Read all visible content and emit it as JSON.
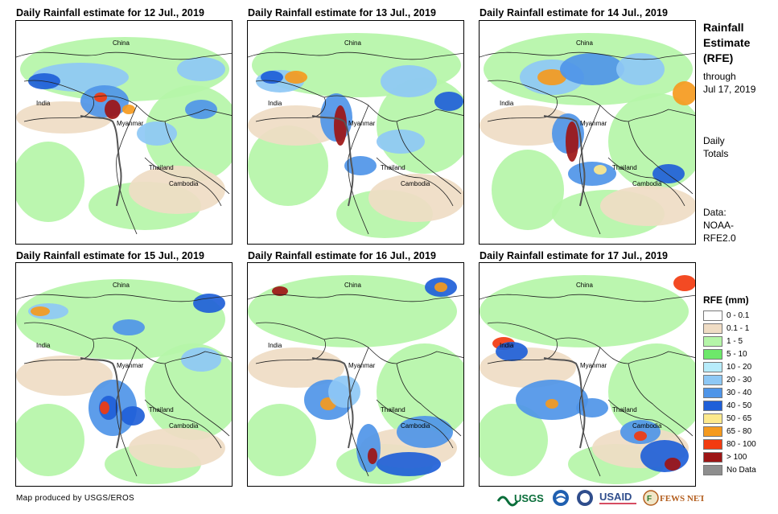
{
  "panels": [
    {
      "title": "Daily Rainfall estimate for 12 Jul., 2019"
    },
    {
      "title": "Daily Rainfall estimate for 13 Jul., 2019"
    },
    {
      "title": "Daily Rainfall estimate for 14 Jul., 2019"
    },
    {
      "title": "Daily Rainfall estimate for 15 Jul., 2019"
    },
    {
      "title": "Daily Rainfall estimate for 16 Jul., 2019"
    },
    {
      "title": "Daily Rainfall estimate for 17 Jul., 2019"
    }
  ],
  "map_labels": {
    "china": "China",
    "india": "India",
    "myanmar": "Myanmar",
    "thailand": "Thailand",
    "cambodia": "Cambodia"
  },
  "side": {
    "title_line1": "Rainfall",
    "title_line2": "Estimate",
    "title_line3": "(RFE)",
    "through_label": "through",
    "through_date": "Jul 17, 2019",
    "totals_line1": "Daily",
    "totals_line2": "Totals",
    "data_line1": "Data:",
    "data_line2": "NOAA-",
    "data_line3": "RFE2.0"
  },
  "legend": {
    "title": "RFE (mm)",
    "items": [
      {
        "label": "0 - 0.1",
        "color": "#ffffff"
      },
      {
        "label": "0.1 - 1",
        "color": "#efdcc4"
      },
      {
        "label": "1 - 5",
        "color": "#b5f5a8"
      },
      {
        "label": "5 - 10",
        "color": "#6de86a"
      },
      {
        "label": "10 - 20",
        "color": "#b7ecfb"
      },
      {
        "label": "20 - 30",
        "color": "#8ec8f5"
      },
      {
        "label": "30 - 40",
        "color": "#4f95e8"
      },
      {
        "label": "40 - 50",
        "color": "#1f5fd8"
      },
      {
        "label": "50 - 65",
        "color": "#fde98c"
      },
      {
        "label": "65 - 80",
        "color": "#f59a1e"
      },
      {
        "label": "80 - 100",
        "color": "#f23b10"
      },
      {
        "label": "> 100",
        "color": "#9d1515"
      },
      {
        "label": "No Data",
        "color": "#8e8e8e"
      }
    ]
  },
  "credit": "Map produced by USGS/EROS",
  "logos": {
    "usgs": "USGS",
    "usaid": "USAID",
    "fewsnet": "FEWS NET"
  }
}
